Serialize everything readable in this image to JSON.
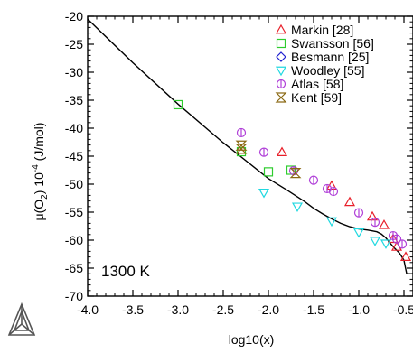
{
  "chart_data": {
    "type": "scatter",
    "title": "",
    "xlabel": "log10(x)",
    "ylabel_parts": [
      "μ(O",
      "2",
      ") 10",
      "-4",
      " (J/mol)"
    ],
    "annotation": "1300 K",
    "xlim": [
      -4.0,
      -0.4
    ],
    "ylim": [
      -70,
      -20
    ],
    "xticks": [
      -4.0,
      -3.5,
      -3.0,
      -2.5,
      -2.0,
      -1.5,
      -1.0,
      -0.5
    ],
    "xtick_labels": [
      "-4.0",
      "-3.5",
      "-3.0",
      "-2.5",
      "-2.0",
      "-1.5",
      "-1.0",
      "-0.5"
    ],
    "yticks": [
      -20,
      -25,
      -30,
      -35,
      -40,
      -45,
      -50,
      -55,
      -60,
      -65,
      -70
    ],
    "ytick_labels": [
      "-20",
      "-25",
      "-30",
      "-35",
      "-40",
      "-45",
      "-50",
      "-55",
      "-60",
      "-65",
      "-70"
    ],
    "legend_position": "top-right",
    "grid": false,
    "calculated_curve": {
      "color": "#000000",
      "x": [
        -4.0,
        -3.5,
        -3.0,
        -2.5,
        -2.0,
        -1.8,
        -1.6,
        -1.5,
        -1.4,
        -1.3,
        -1.2,
        -1.1,
        -1.0,
        -0.9,
        -0.8,
        -0.75,
        -0.7,
        -0.65,
        -0.6,
        -0.55,
        -0.5,
        -0.47,
        -0.46,
        -0.4
      ],
      "y": [
        -20.5,
        -28.3,
        -35.7,
        -42.6,
        -49.0,
        -51.0,
        -53.1,
        -54.3,
        -55.3,
        -56.2,
        -57.0,
        -57.6,
        -58.0,
        -58.2,
        -58.5,
        -58.9,
        -59.6,
        -60.6,
        -61.5,
        -62.3,
        -63.6,
        -66.0,
        -66.0,
        -66.0
      ]
    },
    "series": [
      {
        "name": "Markin [28]",
        "marker": "triangle-up",
        "color": "#e8202a",
        "x": [
          -1.85,
          -1.3,
          -1.1,
          -0.85,
          -0.72,
          -0.62,
          -0.58,
          -0.48
        ],
        "y": [
          -44.3,
          -50.3,
          -53.2,
          -55.8,
          -57.3,
          -59.8,
          -61.2,
          -63.0
        ]
      },
      {
        "name": "Swansson [56]",
        "marker": "square",
        "color": "#2ecc2e",
        "x": [
          -3.0,
          -2.3,
          -2.0,
          -1.75
        ],
        "y": [
          -35.8,
          -44.2,
          -47.8,
          -47.5
        ]
      },
      {
        "name": "Besmann [25]",
        "marker": "diamond",
        "color": "#2020d0",
        "x": [],
        "y": []
      },
      {
        "name": "Woodley [55]",
        "marker": "triangle-down",
        "color": "#20d8e0",
        "x": [
          -2.05,
          -1.68,
          -1.3,
          -1.0,
          -0.82,
          -0.7
        ],
        "y": [
          -51.5,
          -54.0,
          -56.6,
          -58.6,
          -60.1,
          -60.6
        ]
      },
      {
        "name": "Atlas [58]",
        "marker": "circle-vline",
        "color": "#b040d8",
        "x": [
          -2.3,
          -2.05,
          -1.72,
          -1.5,
          -1.35,
          -1.28,
          -1.0,
          -0.82,
          -0.62,
          -0.58,
          -0.52
        ],
        "y": [
          -40.8,
          -44.3,
          -47.6,
          -49.3,
          -50.8,
          -51.3,
          -55.1,
          -56.8,
          -59.2,
          -59.8,
          -60.7
        ]
      },
      {
        "name": "Kent [59]",
        "marker": "bowtie",
        "color": "#8b6914",
        "x": [
          -2.3,
          -2.3,
          -1.7
        ],
        "y": [
          -43.1,
          -43.7,
          -48.0
        ]
      }
    ]
  },
  "logo": {
    "name": "thermo-calc-logo"
  }
}
